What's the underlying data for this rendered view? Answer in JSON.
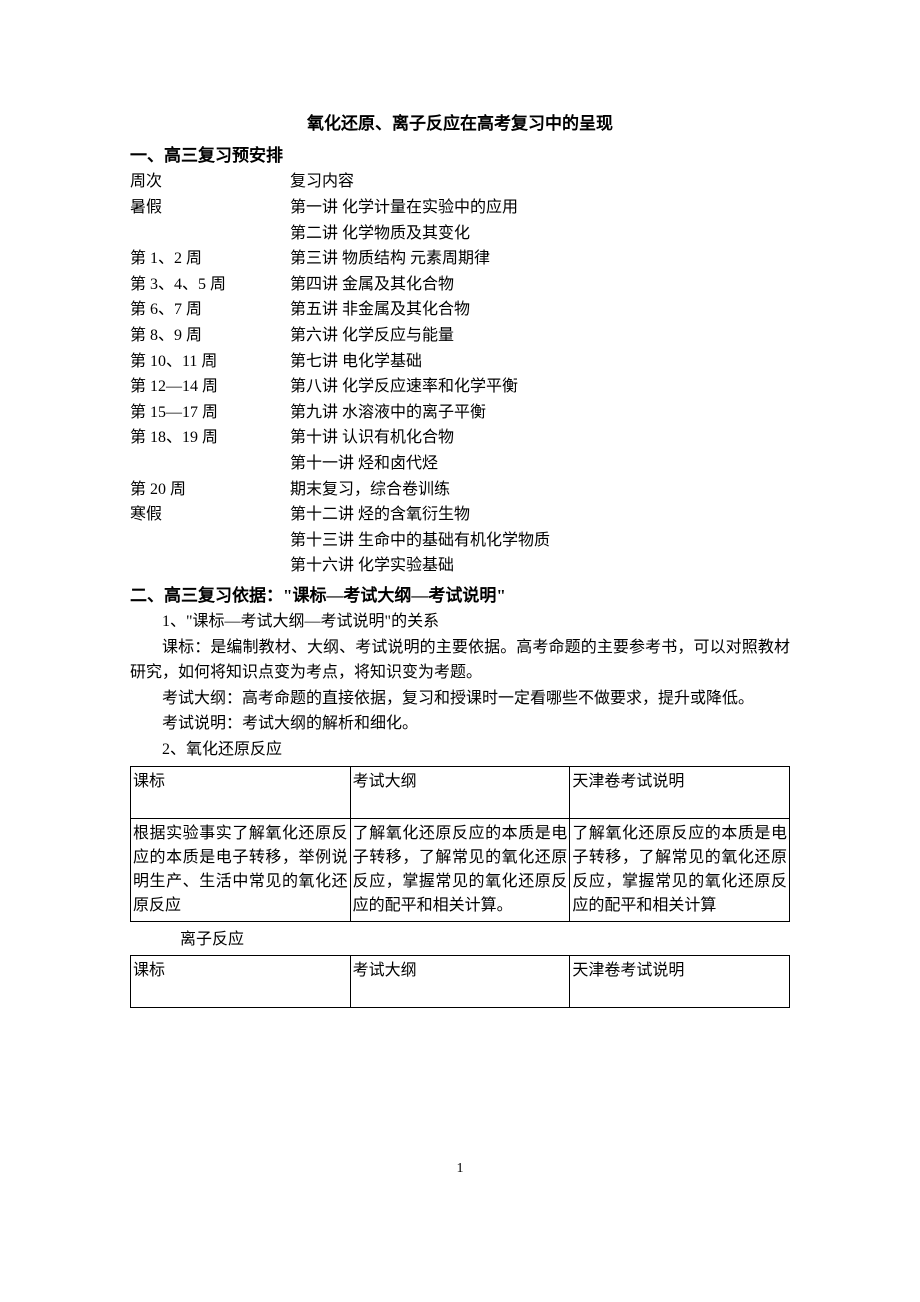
{
  "title": "氧化还原、离子反应在高考复习中的呈现",
  "section1": {
    "header": "一、高三复习预安排",
    "scheduleHeader": {
      "week": "周次",
      "content": "复习内容"
    },
    "schedule": [
      {
        "week": "暑假",
        "content": "第一讲    化学计量在实验中的应用"
      },
      {
        "week": "",
        "content": "第二讲    化学物质及其变化"
      },
      {
        "week": "第 1、2 周",
        "content": "第三讲    物质结构    元素周期律"
      },
      {
        "week": "第 3、4、5 周",
        "content": "第四讲    金属及其化合物"
      },
      {
        "week": "第 6、7 周",
        "content": "第五讲    非金属及其化合物"
      },
      {
        "week": "第 8、9 周",
        "content": "第六讲    化学反应与能量"
      },
      {
        "week": "第 10、11 周",
        "content": "第七讲    电化学基础"
      },
      {
        "week": "第 12—14 周",
        "content": "第八讲    化学反应速率和化学平衡"
      },
      {
        "week": "第 15—17 周",
        "content": "第九讲    水溶液中的离子平衡"
      },
      {
        "week": "第 18、19 周",
        "content": "第十讲    认识有机化合物"
      },
      {
        "week": "",
        "content": "第十一讲    烃和卤代烃"
      },
      {
        "week": "第 20 周",
        "content": "期末复习，综合卷训练"
      },
      {
        "week": "寒假",
        "content": "第十二讲    烃的含氧衍生物"
      },
      {
        "week": "",
        "content": "第十三讲    生命中的基础有机化学物质"
      },
      {
        "week": "",
        "content": "第十六讲    化学实验基础"
      }
    ]
  },
  "section2": {
    "header": "二、高三复习依据：\"课标—考试大纲—考试说明\"",
    "sub1": {
      "label": "1、\"课标—考试大纲—考试说明\"的关系",
      "p1": "课标：是编制教材、大纲、考试说明的主要依据。高考命题的主要参考书，可以对照教材研究，如何将知识点变为考点，将知识变为考题。",
      "p2": "考试大纲：高考命题的直接依据，复习和授课时一定看哪些不做要求，提升或降低。",
      "p3": "考试说明：考试大纲的解析和细化。"
    },
    "sub2": {
      "label": "2、氧化还原反应",
      "table": {
        "headers": [
          "课标",
          "考试大纲",
          "天津卷考试说明"
        ],
        "row": [
          "根据实验事实了解氧化还原反应的本质是电子转移，举例说明生产、生活中常见的氧化还原反应",
          "了解氧化还原反应的本质是电子转移，了解常见的氧化还原反应，掌握常见的氧化还原反应的配平和相关计算。",
          "了解氧化还原反应的本质是电子转移，了解常见的氧化还原反应，掌握常见的氧化还原反应的配平和相关计算"
        ]
      }
    },
    "sub3": {
      "label": "离子反应",
      "table": {
        "headers": [
          "课标",
          "考试大纲",
          "天津卷考试说明"
        ]
      }
    }
  },
  "pageNumber": "1"
}
